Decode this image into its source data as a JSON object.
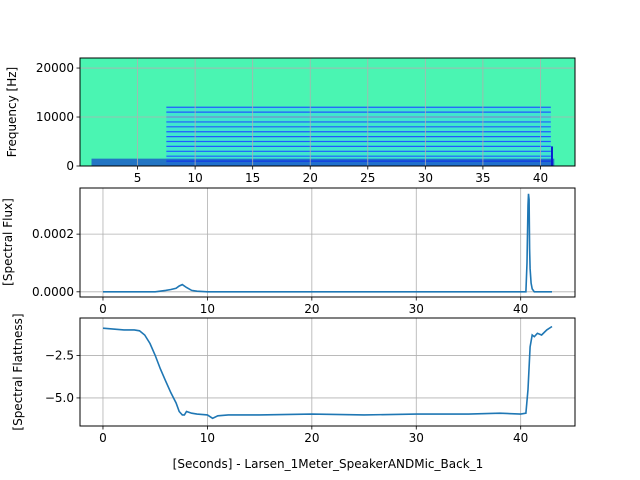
{
  "chart_data": [
    {
      "type": "heatmap",
      "title": "",
      "xlabel": "",
      "ylabel": "Frequency [Hz]",
      "xlim": [
        0,
        43
      ],
      "ylim": [
        0,
        22050
      ],
      "xticks": [
        5,
        10,
        15,
        20,
        25,
        30,
        35,
        40
      ],
      "yticks": [
        0,
        10000,
        20000
      ],
      "grid": true,
      "colormap": "jet",
      "colors": {
        "background": "#4af5b2",
        "harmonic": "#1f5bff",
        "low_band": "#0a1fd0"
      },
      "harmonic_band": {
        "start": 7.5,
        "end": 40.9,
        "top_frequency": 12000,
        "spacing": 1000
      },
      "low_frequency_band": {
        "start": 1.0,
        "end": 41.2,
        "top_frequency": 1500
      }
    },
    {
      "type": "line",
      "title": "",
      "xlabel": "",
      "ylabel": "[Spectral Flux]",
      "xlim": [
        -2.2,
        45.2
      ],
      "ylim": [
        -1.8e-05,
        0.00036
      ],
      "xticks": [
        0,
        10,
        20,
        30,
        40
      ],
      "yticks": [
        0.0,
        0.0002
      ],
      "ytick_labels": [
        "0.0000",
        "0.0002"
      ],
      "grid": true,
      "color": "#1f77b4",
      "x": [
        0,
        5.0,
        6.0,
        6.5,
        7.0,
        7.3,
        7.6,
        8.0,
        8.5,
        9.0,
        10.0,
        20.0,
        30.0,
        40.5,
        40.6,
        40.7,
        40.75,
        40.8,
        40.85,
        40.9,
        41.0,
        41.1,
        41.3,
        42.0,
        43.0
      ],
      "y": [
        0.0,
        0.0,
        5e-06,
        8e-06,
        1.2e-05,
        2e-05,
        2.5e-05,
        1.5e-05,
        5e-06,
        2e-06,
        0.0,
        0.0,
        0.0,
        0.0,
        0.0001,
        0.0003,
        0.00034,
        0.00032,
        0.00015,
        8e-05,
        3e-05,
        1e-05,
        0.0,
        0.0,
        0.0
      ]
    },
    {
      "type": "line",
      "title": "",
      "xlabel": "[Seconds] - Larsen_1Meter_SpeakerANDMic_Back_1",
      "ylabel": "[Spectral Flattness]",
      "xlim": [
        -2.2,
        45.2
      ],
      "ylim": [
        -6.65,
        -0.3
      ],
      "xticks": [
        0,
        10,
        20,
        30,
        40
      ],
      "yticks": [
        -2.5,
        -5.0
      ],
      "ytick_labels": [
        "−2.5",
        "−5.0"
      ],
      "grid": true,
      "color": "#1f77b4",
      "x": [
        0,
        1.0,
        2.0,
        3.0,
        3.5,
        4.0,
        4.5,
        5.0,
        5.5,
        6.0,
        6.5,
        7.0,
        7.3,
        7.6,
        7.8,
        8.0,
        8.5,
        9.0,
        10.0,
        10.5,
        11.0,
        12.0,
        15.0,
        20.0,
        25.0,
        30.0,
        35.0,
        38.0,
        40.0,
        40.5,
        40.7,
        40.9,
        41.1,
        41.3,
        41.6,
        42.0,
        42.5,
        43.0
      ],
      "y": [
        -0.9,
        -0.95,
        -1.0,
        -1.0,
        -1.05,
        -1.3,
        -1.8,
        -2.5,
        -3.3,
        -4.0,
        -4.7,
        -5.3,
        -5.8,
        -6.0,
        -6.0,
        -5.8,
        -5.9,
        -5.95,
        -6.0,
        -6.2,
        -6.05,
        -6.0,
        -6.0,
        -5.95,
        -6.0,
        -5.95,
        -5.95,
        -5.9,
        -5.95,
        -5.9,
        -4.5,
        -2.0,
        -1.3,
        -1.4,
        -1.2,
        -1.3,
        -1.0,
        -0.8
      ]
    }
  ]
}
